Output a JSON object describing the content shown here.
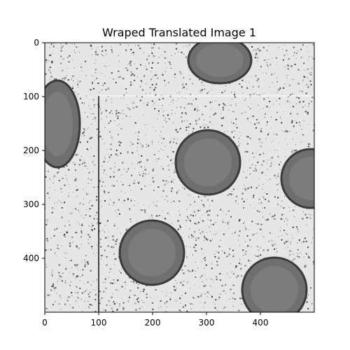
{
  "figure": {
    "title": "Wraped Translated Image 1"
  },
  "image": {
    "description_tag": "grayscale-coins-with-salt-pepper-noise",
    "background_color": "#e6e6e6",
    "coin_color": "#6f6f6f",
    "coin_rim_color": "#3a3a3a",
    "noise_color": "#333333"
  },
  "axes": {
    "x_ticks": [
      "0",
      "100",
      "200",
      "300",
      "400"
    ],
    "y_ticks": [
      "0",
      "100",
      "200",
      "300",
      "400"
    ],
    "x_range": [
      0,
      500
    ],
    "y_range": [
      0,
      500
    ]
  }
}
